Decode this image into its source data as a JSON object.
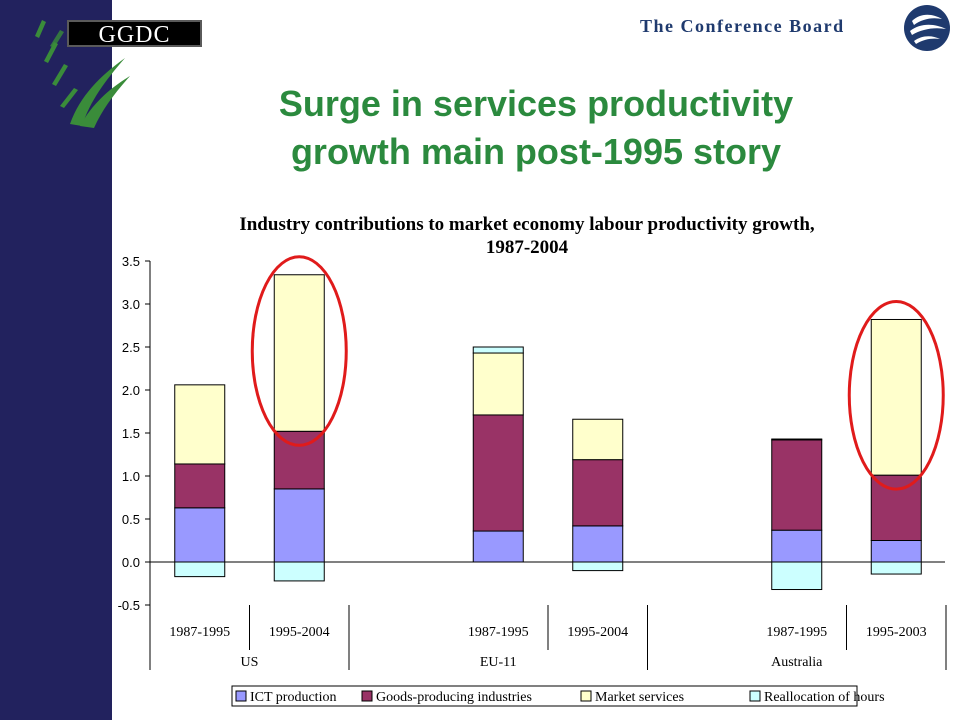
{
  "header": {
    "ggdc_logo_text": "GGDC",
    "conference_board_text": "The Conference Board",
    "title_line1": "Surge in services productivity",
    "title_line2": "growth main post-1995 story"
  },
  "colors": {
    "left_band": "#22225e",
    "title_green": "#2b8a3e",
    "conference_board_blue": "#1f3a6e",
    "highlight_circle": "#e01b1b"
  },
  "chart_data": {
    "type": "bar",
    "stacked": true,
    "title_line1": "Industry contributions to market economy labour productivity growth,",
    "title_line2": "1987-2004",
    "ylim": [
      -0.5,
      3.5
    ],
    "y_ticks": [
      "3.5",
      "3.0",
      "2.5",
      "2.0",
      "1.5",
      "1.0",
      "0.5",
      "0.0",
      "-0.5"
    ],
    "y_tick_values": [
      3.5,
      3.0,
      2.5,
      2.0,
      1.5,
      1.0,
      0.5,
      0.0,
      -0.5
    ],
    "groups": [
      "US",
      "EU-11",
      "Australia"
    ],
    "categories": [
      "1987-1995",
      "1995-2004",
      "1987-1995",
      "1995-2004",
      "1987-1995",
      "1995-2003"
    ],
    "category_group": [
      0,
      0,
      1,
      1,
      2,
      2
    ],
    "series": [
      {
        "name": "ICT production",
        "color": "#9999ff",
        "values": [
          0.63,
          0.85,
          0.36,
          0.42,
          0.37,
          0.25
        ]
      },
      {
        "name": "Goods-producing industries",
        "color": "#993366",
        "values": [
          0.51,
          0.67,
          1.35,
          0.77,
          1.05,
          0.76
        ]
      },
      {
        "name": "Market services",
        "color": "#ffffcc",
        "values": [
          0.92,
          1.82,
          0.72,
          0.47,
          0.01,
          1.81
        ]
      },
      {
        "name": "Reallocation of hours",
        "color": "#ccffff",
        "values": [
          -0.17,
          -0.22,
          0.07,
          -0.1,
          -0.32,
          -0.14
        ]
      }
    ],
    "highlighted_categories": [
      1,
      5
    ],
    "grid": false,
    "legend_position": "bottom"
  }
}
